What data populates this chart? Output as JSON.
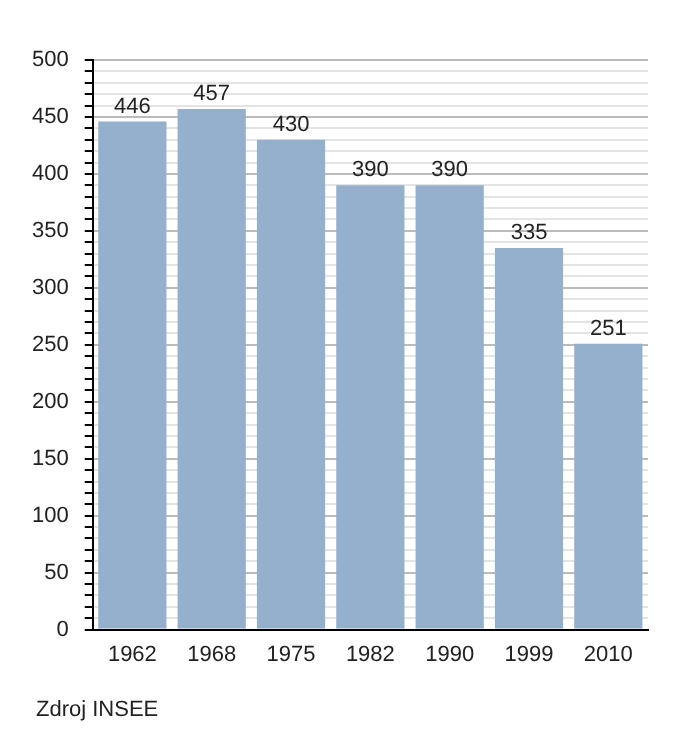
{
  "chart_data": {
    "type": "bar",
    "categories": [
      "1962",
      "1968",
      "1975",
      "1982",
      "1990",
      "1999",
      "2010"
    ],
    "values": [
      446,
      457,
      430,
      390,
      390,
      335,
      251
    ],
    "color": "#95b0cd",
    "data_labels": true,
    "grid": "y",
    "legend": false,
    "ylim": [
      0,
      500
    ],
    "yticks": [
      0,
      {
        "value": 10,
        "label": null
      },
      {
        "value": 20,
        "label": null
      },
      {
        "value": 30,
        "label": null
      },
      {
        "value": 40,
        "label": null
      },
      50,
      {
        "value": 60,
        "label": null
      },
      {
        "value": 70,
        "label": null
      },
      {
        "value": 80,
        "label": null
      },
      {
        "value": 90,
        "label": null
      },
      100,
      {
        "value": 110,
        "label": null
      },
      {
        "value": 120,
        "label": null
      },
      {
        "value": 130,
        "label": null
      },
      {
        "value": 140,
        "label": null
      },
      150,
      {
        "value": 160,
        "label": null
      },
      {
        "value": 170,
        "label": null
      },
      {
        "value": 180,
        "label": null
      },
      {
        "value": 190,
        "label": null
      },
      200,
      {
        "value": 210,
        "label": null
      },
      {
        "value": 220,
        "label": null
      },
      {
        "value": 230,
        "label": null
      },
      {
        "value": 240,
        "label": null
      },
      250,
      {
        "value": 260,
        "label": null
      },
      {
        "value": 270,
        "label": null
      },
      {
        "value": 280,
        "label": null
      },
      {
        "value": 290,
        "label": null
      },
      300,
      {
        "value": 310,
        "label": null
      },
      {
        "value": 320,
        "label": null
      },
      {
        "value": 330,
        "label": null
      },
      {
        "value": 340,
        "label": null
      },
      350,
      {
        "value": 360,
        "label": null
      },
      {
        "value": 370,
        "label": null
      },
      {
        "value": 380,
        "label": null
      },
      {
        "value": 390,
        "label": null
      },
      400,
      {
        "value": 410,
        "label": null
      },
      {
        "value": 420,
        "label": null
      },
      {
        "value": 430,
        "label": null
      },
      {
        "value": 440,
        "label": null
      },
      450,
      {
        "value": 460,
        "label": null
      },
      {
        "value": 470,
        "label": null
      },
      {
        "value": 480,
        "label": null
      },
      {
        "value": 490,
        "label": null
      },
      500
    ],
    "annotations": [
      "Zdroj INSEE"
    ]
  }
}
